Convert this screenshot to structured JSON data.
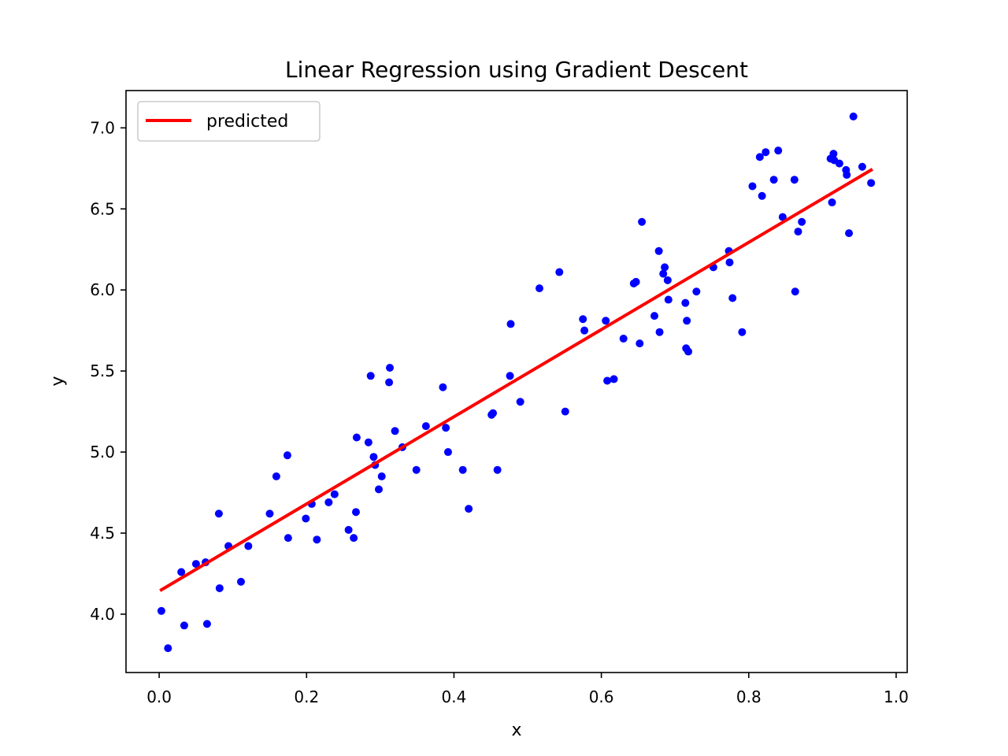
{
  "chart_data": {
    "type": "scatter",
    "title": "Linear Regression using Gradient Descent",
    "xlabel": "x",
    "ylabel": "y",
    "xlim": [
      -0.045,
      1.015
    ],
    "ylim": [
      3.64,
      7.23
    ],
    "xticks": [
      0.0,
      0.2,
      0.4,
      0.6,
      0.8,
      1.0
    ],
    "xtick_labels": [
      "0.0",
      "0.2",
      "0.4",
      "0.6",
      "0.8",
      "1.0"
    ],
    "yticks": [
      4.0,
      4.5,
      5.0,
      5.5,
      6.0,
      6.5,
      7.0
    ],
    "ytick_labels": [
      "4.0",
      "4.5",
      "5.0",
      "5.5",
      "6.0",
      "6.5",
      "7.0"
    ],
    "grid": false,
    "legend": {
      "position": "upper left",
      "entries": [
        "predicted"
      ]
    },
    "colors": {
      "points": "#0000ff",
      "line": "#ff0000"
    },
    "series": [
      {
        "kind": "line",
        "name": "predicted",
        "color": "#ff0000",
        "x": [
          0.003,
          0.966
        ],
        "y": [
          4.15,
          6.74
        ]
      },
      {
        "kind": "scatter",
        "color": "#0000ff",
        "x": [
          0.003,
          0.012,
          0.03,
          0.034,
          0.05,
          0.063,
          0.065,
          0.081,
          0.082,
          0.094,
          0.111,
          0.121,
          0.15,
          0.159,
          0.174,
          0.175,
          0.199,
          0.207,
          0.214,
          0.23,
          0.238,
          0.257,
          0.264,
          0.267,
          0.268,
          0.284,
          0.287,
          0.291,
          0.293,
          0.298,
          0.302,
          0.312,
          0.313,
          0.32,
          0.33,
          0.349,
          0.362,
          0.385,
          0.389,
          0.392,
          0.412,
          0.42,
          0.451,
          0.453,
          0.459,
          0.476,
          0.477,
          0.49,
          0.516,
          0.543,
          0.551,
          0.575,
          0.577,
          0.606,
          0.608,
          0.617,
          0.63,
          0.644,
          0.647,
          0.652,
          0.655,
          0.672,
          0.678,
          0.679,
          0.684,
          0.686,
          0.69,
          0.691,
          0.714,
          0.715,
          0.716,
          0.718,
          0.729,
          0.752,
          0.773,
          0.774,
          0.778,
          0.791,
          0.805,
          0.815,
          0.818,
          0.823,
          0.834,
          0.84,
          0.846,
          0.862,
          0.863,
          0.867,
          0.872,
          0.911,
          0.913,
          0.915,
          0.916,
          0.923,
          0.932,
          0.933,
          0.936,
          0.942,
          0.954,
          0.966
        ],
        "y": [
          4.02,
          3.79,
          4.26,
          3.93,
          4.31,
          4.32,
          3.94,
          4.62,
          4.16,
          4.42,
          4.2,
          4.42,
          4.62,
          4.85,
          4.98,
          4.47,
          4.59,
          4.68,
          4.46,
          4.69,
          4.74,
          4.52,
          4.47,
          4.63,
          5.09,
          5.06,
          5.47,
          4.97,
          4.92,
          4.77,
          4.85,
          5.43,
          5.52,
          5.13,
          5.03,
          4.89,
          5.16,
          5.4,
          5.15,
          5.0,
          4.89,
          4.65,
          5.23,
          5.24,
          4.89,
          5.47,
          5.79,
          5.31,
          6.01,
          6.11,
          5.25,
          5.82,
          5.75,
          5.81,
          5.44,
          5.45,
          5.7,
          6.04,
          6.05,
          5.67,
          6.42,
          5.84,
          6.24,
          5.74,
          6.1,
          6.14,
          6.06,
          5.94,
          5.92,
          5.64,
          5.81,
          5.62,
          5.99,
          6.14,
          6.24,
          6.17,
          5.95,
          5.74,
          6.64,
          6.82,
          6.58,
          6.85,
          6.68,
          6.86,
          6.45,
          6.68,
          5.99,
          6.36,
          6.42,
          6.81,
          6.54,
          6.84,
          6.8,
          6.78,
          6.74,
          6.71,
          6.35,
          7.07,
          6.76,
          6.66
        ]
      }
    ]
  }
}
